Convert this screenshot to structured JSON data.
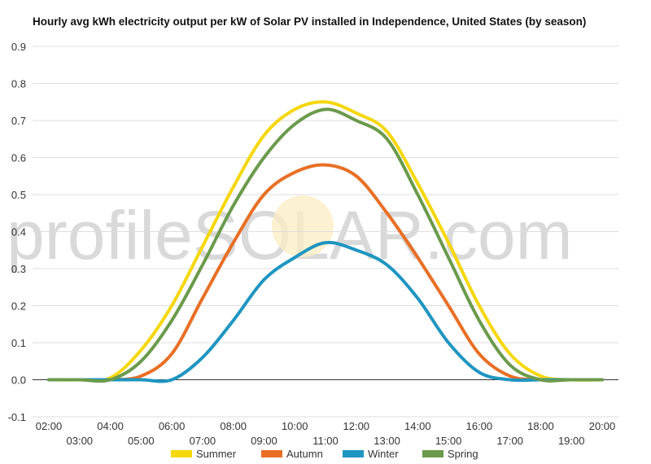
{
  "chart_data": {
    "type": "line",
    "title": "Hourly avg kWh electricity output per kW of Solar PV installed in Independence, United States (by season)",
    "xlabel": "",
    "ylabel": "",
    "ylim": [
      -0.1,
      0.9
    ],
    "yticks": [
      "-0.1",
      "0.0",
      "0.1",
      "0.2",
      "0.3",
      "0.4",
      "0.5",
      "0.6",
      "0.7",
      "0.8",
      "0.9"
    ],
    "categories": [
      "02:00",
      "03:00",
      "04:00",
      "05:00",
      "06:00",
      "07:00",
      "08:00",
      "09:00",
      "10:00",
      "11:00",
      "12:00",
      "13:00",
      "14:00",
      "15:00",
      "16:00",
      "17:00",
      "18:00",
      "19:00",
      "20:00"
    ],
    "grid": true,
    "legend_position": "bottom",
    "watermark": "profileSOLAR.com",
    "series": [
      {
        "name": "Summer",
        "color": "#f5d70c",
        "values": [
          0.0,
          0.0,
          0.005,
          0.08,
          0.2,
          0.36,
          0.52,
          0.66,
          0.73,
          0.75,
          0.72,
          0.67,
          0.53,
          0.37,
          0.2,
          0.07,
          0.01,
          0.0,
          0.0
        ]
      },
      {
        "name": "Autumn",
        "color": "#e86f25",
        "values": [
          0.0,
          0.0,
          0.0,
          0.01,
          0.07,
          0.22,
          0.37,
          0.5,
          0.56,
          0.58,
          0.55,
          0.45,
          0.33,
          0.2,
          0.07,
          0.01,
          0.0,
          0.0,
          0.0
        ]
      },
      {
        "name": "Winter",
        "color": "#1f95c1",
        "values": [
          0.0,
          0.0,
          0.0,
          0.0,
          0.0,
          0.06,
          0.16,
          0.27,
          0.33,
          0.37,
          0.35,
          0.31,
          0.22,
          0.1,
          0.02,
          0.0,
          0.0,
          0.0,
          0.0
        ]
      },
      {
        "name": "Spring",
        "color": "#6b9a4c",
        "values": [
          0.0,
          0.0,
          0.0,
          0.05,
          0.16,
          0.31,
          0.47,
          0.6,
          0.69,
          0.73,
          0.7,
          0.65,
          0.5,
          0.33,
          0.16,
          0.04,
          0.0,
          0.0,
          0.0
        ]
      }
    ]
  }
}
